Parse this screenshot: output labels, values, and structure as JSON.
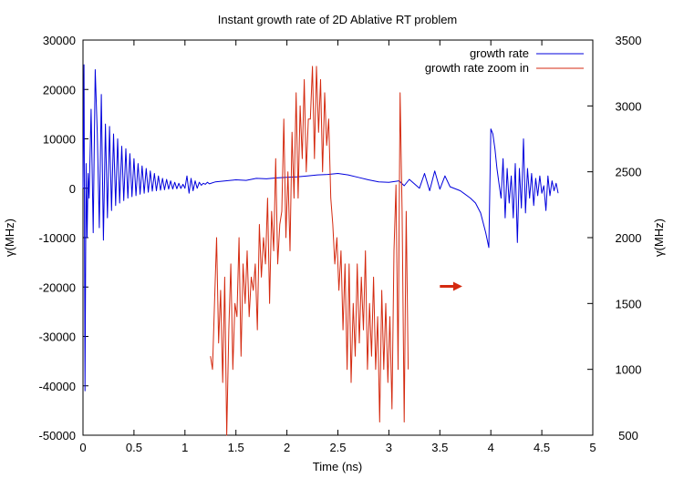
{
  "chart_data": {
    "type": "line",
    "title": "Instant growth rate of 2D Ablative RT problem",
    "xlabel": "Time (ns)",
    "ylabel": "γ(MHz)",
    "y2label": "γ(MHz)",
    "xlim": [
      0,
      5
    ],
    "ylim": [
      -50000,
      30000
    ],
    "y2lim": [
      500,
      3500
    ],
    "x_ticks": [
      0,
      0.5,
      1,
      1.5,
      2,
      2.5,
      3,
      3.5,
      4,
      4.5,
      5
    ],
    "x_tick_labels": [
      "0",
      "0.5",
      "1",
      "1.5",
      "2",
      "2.5",
      "3",
      "3.5",
      "4",
      "4.5",
      "5"
    ],
    "y_ticks": [
      -50000,
      -40000,
      -30000,
      -20000,
      -10000,
      0,
      10000,
      20000,
      30000
    ],
    "y_tick_labels": [
      "-50000",
      "-40000",
      "-30000",
      "-20000",
      "-10000",
      "0",
      "10000",
      "20000",
      "30000"
    ],
    "y2_ticks": [
      500,
      1000,
      1500,
      2000,
      2500,
      3000,
      3500
    ],
    "y2_tick_labels": [
      "500",
      "1000",
      "1500",
      "2000",
      "2500",
      "3000",
      "3500"
    ],
    "grid": false,
    "legend_position": "top-right",
    "arrow_annotation": {
      "x_start": 3.5,
      "x_end": 3.72,
      "y2": 1630,
      "color": "#d42a10",
      "direction": "right"
    },
    "series": [
      {
        "name": "growth rate",
        "axis": "left",
        "color": "#0000dd",
        "x": [
          0.0,
          0.01,
          0.02,
          0.03,
          0.04,
          0.05,
          0.06,
          0.08,
          0.1,
          0.12,
          0.14,
          0.16,
          0.18,
          0.2,
          0.22,
          0.24,
          0.26,
          0.28,
          0.3,
          0.32,
          0.34,
          0.36,
          0.38,
          0.4,
          0.42,
          0.44,
          0.46,
          0.48,
          0.5,
          0.52,
          0.54,
          0.56,
          0.58,
          0.6,
          0.62,
          0.64,
          0.66,
          0.68,
          0.7,
          0.72,
          0.74,
          0.76,
          0.78,
          0.8,
          0.82,
          0.84,
          0.86,
          0.88,
          0.9,
          0.92,
          0.94,
          0.96,
          0.98,
          1.0,
          1.02,
          1.04,
          1.06,
          1.08,
          1.1,
          1.12,
          1.14,
          1.16,
          1.18,
          1.2,
          1.22,
          1.24,
          1.3,
          1.4,
          1.5,
          1.6,
          1.7,
          1.8,
          1.9,
          2.0,
          2.1,
          2.2,
          2.3,
          2.4,
          2.5,
          2.6,
          2.7,
          2.8,
          2.9,
          3.0,
          3.1,
          3.15,
          3.2,
          3.3,
          3.35,
          3.4,
          3.45,
          3.5,
          3.55,
          3.6,
          3.7,
          3.8,
          3.85,
          3.9,
          3.95,
          3.98,
          4.0,
          4.02,
          4.04,
          4.06,
          4.08,
          4.1,
          4.12,
          4.14,
          4.16,
          4.18,
          4.2,
          4.22,
          4.24,
          4.26,
          4.28,
          4.3,
          4.32,
          4.34,
          4.36,
          4.38,
          4.4,
          4.42,
          4.44,
          4.46,
          4.48,
          4.5,
          4.52,
          4.54,
          4.56,
          4.58,
          4.6,
          4.62,
          4.64,
          4.66
        ],
        "values": [
          0,
          25000,
          -41000,
          5000,
          -10000,
          3000,
          -2000,
          16000,
          -9000,
          24000,
          11000,
          -8000,
          19000,
          -10500,
          13000,
          -6000,
          12500,
          -4500,
          11000,
          -3500,
          10000,
          -3000,
          8500,
          -2500,
          8000,
          -2000,
          7000,
          -1700,
          6000,
          -1500,
          5000,
          -1200,
          4500,
          -1000,
          4000,
          -800,
          3500,
          -600,
          3000,
          -500,
          2500,
          -400,
          2000,
          -300,
          1800,
          -200,
          1500,
          -150,
          1200,
          -100,
          1000,
          -50,
          800,
          0,
          2500,
          -1000,
          2000,
          -500,
          1500,
          0,
          1200,
          600,
          1000,
          800,
          1200,
          900,
          1300,
          1500,
          1700,
          1600,
          2000,
          1900,
          2100,
          2200,
          2300,
          2500,
          2700,
          2800,
          3000,
          2700,
          2200,
          1700,
          1300,
          1200,
          1500,
          500,
          1800,
          0,
          3000,
          -500,
          3500,
          -200,
          2500,
          300,
          -500,
          -2000,
          -3000,
          -5000,
          -9000,
          -12000,
          12000,
          11000,
          8000,
          4000,
          1000,
          -2000,
          6000,
          -6000,
          4000,
          -3000,
          2500,
          -6000,
          5000,
          -11000,
          4000,
          -4000,
          10000,
          -5000,
          4000,
          -2000,
          3000,
          -3500,
          2000,
          -1500,
          2500,
          -1000,
          500,
          -4500,
          2500,
          -1500,
          1500,
          -500,
          1000,
          -1000
        ]
      },
      {
        "name": "growth rate zoom in",
        "axis": "right",
        "color": "#d42a10",
        "x": [
          1.25,
          1.27,
          1.29,
          1.31,
          1.33,
          1.35,
          1.37,
          1.39,
          1.41,
          1.43,
          1.45,
          1.47,
          1.49,
          1.51,
          1.53,
          1.55,
          1.57,
          1.59,
          1.61,
          1.63,
          1.65,
          1.67,
          1.69,
          1.71,
          1.73,
          1.75,
          1.77,
          1.79,
          1.81,
          1.83,
          1.85,
          1.87,
          1.89,
          1.91,
          1.93,
          1.95,
          1.97,
          1.99,
          2.01,
          2.03,
          2.05,
          2.07,
          2.09,
          2.11,
          2.13,
          2.15,
          2.17,
          2.19,
          2.21,
          2.23,
          2.25,
          2.27,
          2.29,
          2.31,
          2.33,
          2.35,
          2.37,
          2.39,
          2.41,
          2.43,
          2.45,
          2.47,
          2.49,
          2.51,
          2.53,
          2.55,
          2.57,
          2.59,
          2.61,
          2.63,
          2.65,
          2.67,
          2.69,
          2.71,
          2.73,
          2.75,
          2.77,
          2.79,
          2.81,
          2.83,
          2.85,
          2.87,
          2.89,
          2.91,
          2.93,
          2.95,
          2.97,
          2.99,
          3.01,
          3.03,
          3.05,
          3.07,
          3.09,
          3.11,
          3.13,
          3.15,
          3.17,
          3.19
        ],
        "values": [
          1100,
          1000,
          1500,
          2000,
          1200,
          1600,
          900,
          1700,
          500,
          1300,
          1800,
          1000,
          1500,
          1400,
          2000,
          1100,
          1800,
          1500,
          1900,
          1400,
          1700,
          1600,
          1800,
          1300,
          2100,
          1700,
          2000,
          1800,
          2300,
          1500,
          2200,
          1900,
          2600,
          1800,
          2100,
          2200,
          2900,
          2000,
          2500,
          1900,
          2800,
          2300,
          3100,
          2300,
          3000,
          2600,
          3200,
          2500,
          2900,
          2900,
          3300,
          2600,
          3300,
          2800,
          3200,
          2500,
          3100,
          2700,
          2900,
          2300,
          2100,
          1800,
          2000,
          1600,
          1900,
          1300,
          1800,
          1000,
          1800,
          900,
          1500,
          1100,
          1800,
          1200,
          1700,
          1300,
          1900,
          1000,
          1500,
          1100,
          1700,
          1000,
          1400,
          600,
          1600,
          1000,
          1500,
          900,
          1400,
          700,
          1900,
          2400,
          1000,
          3100,
          2200,
          600,
          2200,
          1000
        ]
      }
    ]
  }
}
